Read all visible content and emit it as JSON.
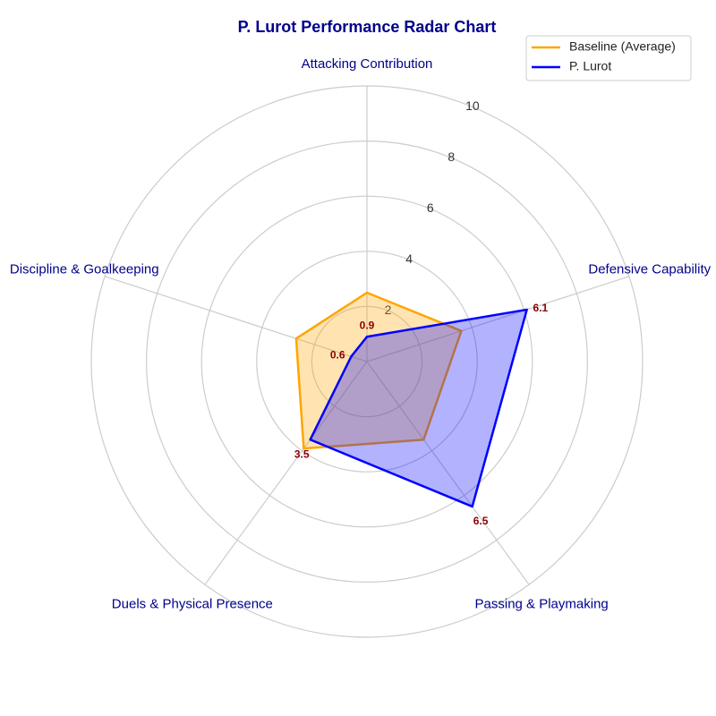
{
  "chart_data": {
    "type": "radar",
    "title": "P. Lurot Performance Radar Chart",
    "categories": [
      "Attacking Contribution",
      "Defensive Capability",
      "Passing & Playmaking",
      "Duels & Physical Presence",
      "Discipline & Goalkeeping"
    ],
    "series": [
      {
        "name": "Baseline (Average)",
        "color": "#ffa500",
        "values": [
          2.5,
          3.6,
          3.5,
          3.9,
          2.7
        ]
      },
      {
        "name": "P. Lurot",
        "color": "#0000ff",
        "values": [
          0.9,
          6.1,
          6.5,
          3.5,
          0.6
        ],
        "value_labels": [
          "0.9",
          "6.1",
          "6.5",
          "3.5",
          "0.6"
        ]
      }
    ],
    "ylim": [
      0,
      10
    ],
    "yticks": [
      2,
      4,
      6,
      8,
      10
    ],
    "grid": true,
    "legend": "upper right"
  }
}
